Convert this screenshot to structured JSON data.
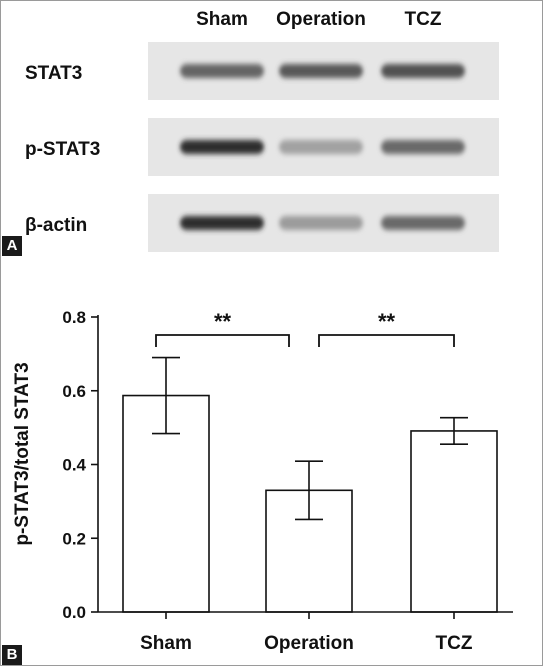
{
  "panel_a": {
    "letter": "A",
    "lane_labels": [
      "Sham",
      "Operation",
      "TCZ"
    ],
    "blots": [
      {
        "label": "STAT3",
        "intensity": [
          0.62,
          0.68,
          0.72
        ]
      },
      {
        "label": "p-STAT3",
        "intensity": [
          0.9,
          0.32,
          0.6
        ]
      },
      {
        "label": "β-actin",
        "intensity": [
          0.9,
          0.35,
          0.6
        ]
      }
    ]
  },
  "panel_b": {
    "letter": "B"
  },
  "chart_data": {
    "type": "bar",
    "categories": [
      "Sham",
      "Operation",
      "TCZ"
    ],
    "values": [
      0.587,
      0.33,
      0.491
    ],
    "error": [
      0.103,
      0.079,
      0.036
    ],
    "ylabel": "p-STAT3/total STAT3",
    "xlabel": "",
    "ylim": [
      0,
      0.8
    ],
    "yticks": [
      "0.0",
      "0.2",
      "0.4",
      "0.6",
      "0.8"
    ],
    "grid": false,
    "significance": [
      {
        "from": 0,
        "to": 1,
        "label": "**"
      },
      {
        "from": 1,
        "to": 2,
        "label": "**"
      }
    ]
  }
}
